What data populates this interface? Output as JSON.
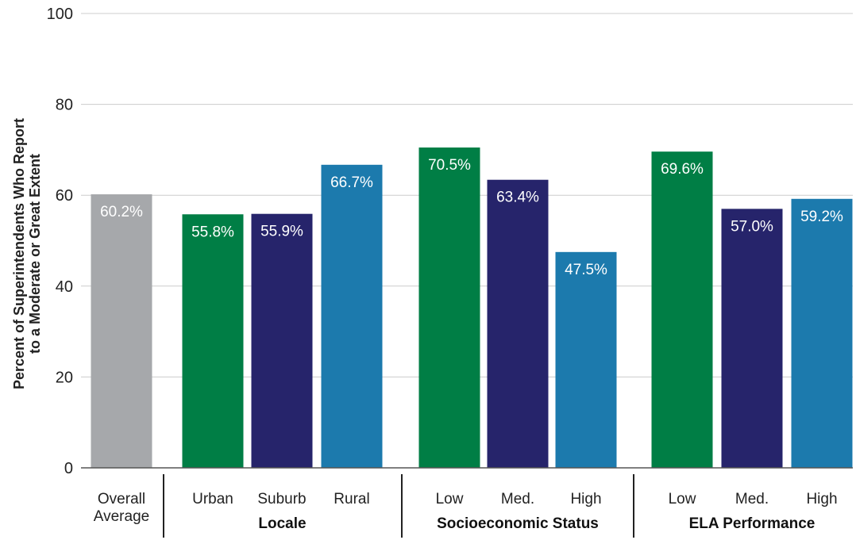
{
  "chart_data": {
    "type": "bar",
    "ylabel_lines": [
      "Percent of Superintendents Who Report",
      "to a Moderate or Great Extent"
    ],
    "ylim": [
      0,
      100
    ],
    "yticks": [
      0,
      20,
      40,
      60,
      80,
      100
    ],
    "grid": true,
    "bars": [
      {
        "label_lines": [
          "Overall",
          "Average"
        ],
        "value": 60.2,
        "data_label": "60.2%",
        "color": "#a6a8ab",
        "group": 0
      },
      {
        "label_lines": [
          "Urban"
        ],
        "value": 55.8,
        "data_label": "55.8%",
        "color": "#007e45",
        "group": 1
      },
      {
        "label_lines": [
          "Suburb"
        ],
        "value": 55.9,
        "data_label": "55.9%",
        "color": "#26246b",
        "group": 1
      },
      {
        "label_lines": [
          "Rural"
        ],
        "value": 66.7,
        "data_label": "66.7%",
        "color": "#1c7aad",
        "group": 1
      },
      {
        "label_lines": [
          "Low"
        ],
        "value": 70.5,
        "data_label": "70.5%",
        "color": "#007e45",
        "group": 2
      },
      {
        "label_lines": [
          "Med."
        ],
        "value": 63.4,
        "data_label": "63.4%",
        "color": "#26246b",
        "group": 2
      },
      {
        "label_lines": [
          "High"
        ],
        "value": 47.5,
        "data_label": "47.5%",
        "color": "#1c7aad",
        "group": 2
      },
      {
        "label_lines": [
          "Low"
        ],
        "value": 69.6,
        "data_label": "69.6%",
        "color": "#007e45",
        "group": 3
      },
      {
        "label_lines": [
          "Med."
        ],
        "value": 57.0,
        "data_label": "57.0%",
        "color": "#26246b",
        "group": 3
      },
      {
        "label_lines": [
          "High"
        ],
        "value": 59.2,
        "data_label": "59.2%",
        "color": "#1c7aad",
        "group": 3
      }
    ],
    "groups": [
      {
        "name": ""
      },
      {
        "name": "Locale"
      },
      {
        "name": "Socioeconomic Status"
      },
      {
        "name": "ELA Performance"
      }
    ]
  }
}
